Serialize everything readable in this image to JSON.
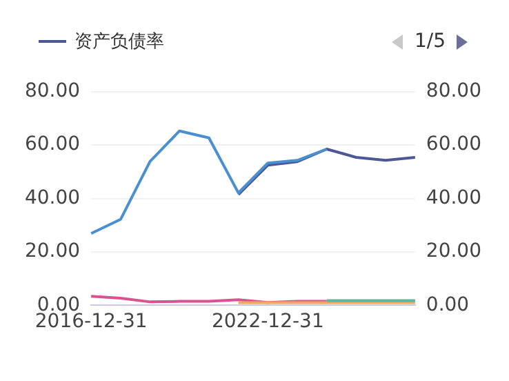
{
  "chart_data": {
    "type": "line",
    "categories": [
      "2016-12-31",
      null,
      null,
      null,
      null,
      null,
      "2022-12-31",
      null,
      null,
      null,
      null,
      null
    ],
    "series": [
      {
        "name": "资产负债率",
        "color": "#4b5796",
        "values": [
          null,
          null,
          null,
          null,
          null,
          41.5,
          52.5,
          53.8,
          58.5,
          55.4,
          54.3,
          55.4
        ]
      },
      {
        "color": "#4a8fd0",
        "values": [
          26.9,
          32.2,
          53.9,
          65.3,
          62.7,
          42.1,
          53.3,
          54.3,
          58.5,
          null,
          null,
          null
        ]
      },
      {
        "color": "#d9538f",
        "values": [
          3.4,
          2.7,
          1.3,
          1.5,
          1.5,
          2.1,
          1.1,
          1.5,
          1.5,
          null,
          null,
          null
        ]
      },
      {
        "color": "#f0a860",
        "values": [
          null,
          null,
          null,
          null,
          null,
          1.0,
          1.0,
          1.0,
          1.0,
          1.0,
          1.0,
          1.0
        ]
      },
      {
        "color": "#5ab89a",
        "values": [
          null,
          null,
          null,
          null,
          null,
          null,
          null,
          null,
          1.8,
          1.8,
          1.8,
          1.8
        ]
      }
    ],
    "ylim": [
      0,
      80
    ],
    "yticks": [
      {
        "value": 0,
        "label": "0.00"
      },
      {
        "value": 20,
        "label": "20.00"
      },
      {
        "value": 40,
        "label": "40.00"
      },
      {
        "value": 60,
        "label": "60.00"
      },
      {
        "value": 80,
        "label": "80.00"
      }
    ],
    "y2lim": [
      0,
      80
    ],
    "y2ticks": [
      {
        "value": 0,
        "label": "0.00"
      },
      {
        "value": 20,
        "label": "20.00"
      },
      {
        "value": 40,
        "label": "40.00"
      },
      {
        "value": 60,
        "label": "60.00"
      },
      {
        "value": 80,
        "label": "80.00"
      }
    ],
    "grid": "y",
    "legend": "top",
    "marker": "none",
    "line_style": "solid",
    "annotations": [
      "1/5"
    ]
  }
}
